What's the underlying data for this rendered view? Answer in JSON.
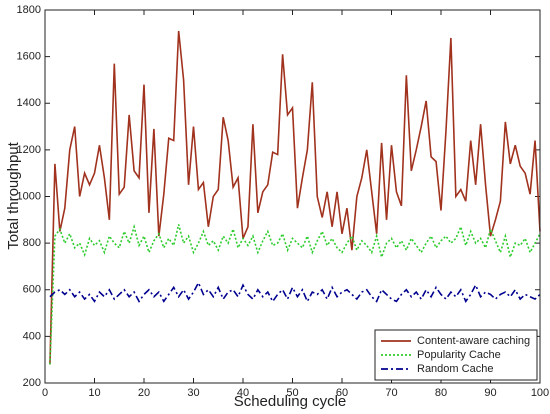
{
  "chart_data": {
    "type": "line",
    "xlabel": "Scheduling cycle",
    "ylabel": "Total throughput",
    "x": [
      1,
      2,
      3,
      4,
      5,
      6,
      7,
      8,
      9,
      10,
      11,
      12,
      13,
      14,
      15,
      16,
      17,
      18,
      19,
      20,
      21,
      22,
      23,
      24,
      25,
      26,
      27,
      28,
      29,
      30,
      31,
      32,
      33,
      34,
      35,
      36,
      37,
      38,
      39,
      40,
      41,
      42,
      43,
      44,
      45,
      46,
      47,
      48,
      49,
      50,
      51,
      52,
      53,
      54,
      55,
      56,
      57,
      58,
      59,
      60,
      61,
      62,
      63,
      64,
      65,
      66,
      67,
      68,
      69,
      70,
      71,
      72,
      73,
      74,
      75,
      76,
      77,
      78,
      79,
      80,
      81,
      82,
      83,
      84,
      85,
      86,
      87,
      88,
      89,
      90,
      91,
      92,
      93,
      94,
      95,
      96,
      97,
      98,
      99,
      100
    ],
    "series": [
      {
        "name": "Content-aware caching",
        "color": "#a0321e",
        "dash": "solid",
        "values": [
          280,
          1140,
          850,
          950,
          1200,
          1300,
          1000,
          1100,
          1050,
          1100,
          1220,
          1080,
          900,
          1570,
          1010,
          1040,
          1350,
          1110,
          1080,
          1480,
          930,
          1290,
          830,
          1010,
          1250,
          1240,
          1710,
          1500,
          1050,
          1300,
          1030,
          1060,
          870,
          1000,
          1030,
          1340,
          1240,
          1040,
          1080,
          820,
          870,
          1310,
          930,
          1020,
          1050,
          1190,
          1180,
          1610,
          1350,
          1380,
          950,
          1080,
          1200,
          1490,
          1000,
          910,
          1020,
          870,
          1020,
          840,
          950,
          770,
          1000,
          1080,
          1200,
          1020,
          840,
          1230,
          900,
          1220,
          1020,
          960,
          1520,
          1110,
          1200,
          1300,
          1410,
          1170,
          1150,
          940,
          1280,
          1680,
          1000,
          1030,
          980,
          1240,
          1050,
          1310,
          1050,
          830,
          900,
          980,
          1320,
          1140,
          1220,
          1130,
          1100,
          1010,
          1240,
          850
        ]
      },
      {
        "name": "Popularity Cache",
        "color": "#2ecc2e",
        "dash": "dotted",
        "values": [
          280,
          830,
          860,
          800,
          840,
          780,
          800,
          750,
          820,
          790,
          810,
          760,
          830,
          800,
          780,
          850,
          800,
          870,
          790,
          830,
          760,
          810,
          840,
          780,
          820,
          790,
          880,
          800,
          830,
          760,
          800,
          850,
          790,
          810,
          770,
          830,
          800,
          860,
          780,
          820,
          790,
          830,
          760,
          810,
          850,
          790,
          800,
          840,
          770,
          820,
          800,
          780,
          830,
          760,
          810,
          850,
          790,
          820,
          780,
          760,
          800,
          830,
          770,
          810,
          790,
          760,
          830,
          740,
          800,
          820,
          780,
          810,
          770,
          820,
          790,
          760,
          800,
          830,
          780,
          810,
          830,
          800,
          820,
          870,
          790,
          850,
          800,
          820,
          780,
          860,
          810,
          760,
          830,
          740,
          800,
          790,
          820,
          760,
          800,
          840
        ]
      },
      {
        "name": "Random Cache",
        "color": "#00008f",
        "dash": "dashdot",
        "values": [
          570,
          590,
          600,
          580,
          600,
          570,
          590,
          560,
          580,
          550,
          590,
          570,
          600,
          560,
          580,
          600,
          570,
          590,
          550,
          580,
          600,
          570,
          590,
          550,
          580,
          610,
          570,
          600,
          560,
          590,
          630,
          580,
          600,
          570,
          610,
          560,
          590,
          600,
          570,
          620,
          580,
          560,
          600,
          570,
          590,
          550,
          580,
          600,
          560,
          610,
          570,
          600,
          550,
          590,
          580,
          600,
          560,
          610,
          570,
          590,
          600,
          580,
          560,
          590,
          600,
          570,
          550,
          600,
          580,
          560,
          550,
          580,
          600,
          570,
          590,
          560,
          600,
          570,
          610,
          580,
          560,
          590,
          570,
          600,
          550,
          580,
          620,
          570,
          590,
          580,
          560,
          580,
          590,
          570,
          600,
          560,
          580,
          570,
          560,
          580
        ]
      }
    ],
    "xlim": [
      0,
      100
    ],
    "xticks": [
      0,
      10,
      20,
      30,
      40,
      50,
      60,
      70,
      80,
      90,
      100
    ],
    "ylim": [
      200,
      1800
    ],
    "yticks": [
      200,
      400,
      600,
      800,
      1000,
      1200,
      1400,
      1600,
      1800
    ],
    "legend": "lower right"
  }
}
